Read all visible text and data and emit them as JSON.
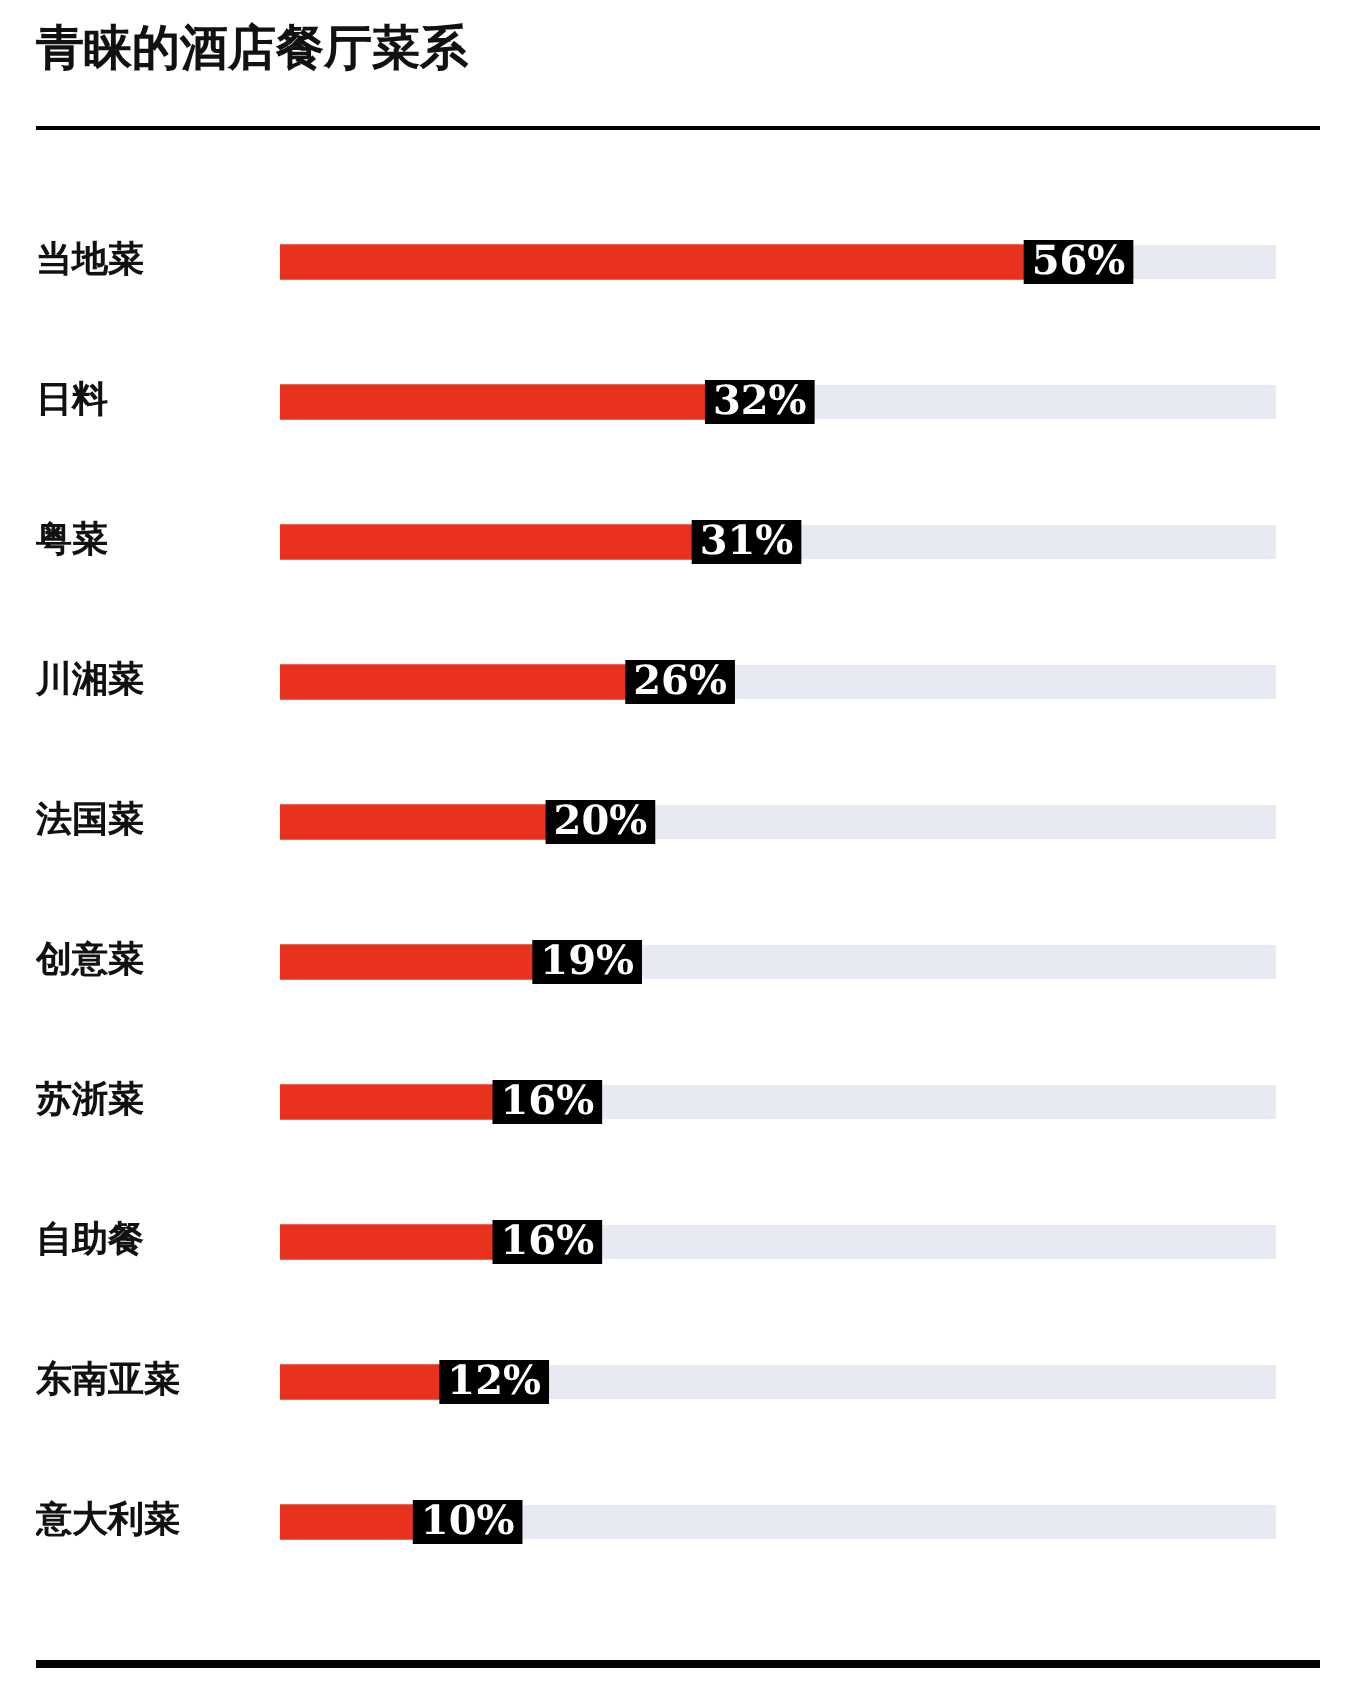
{
  "chart_data": {
    "type": "bar",
    "orientation": "horizontal",
    "title": "青睐的酒店餐厅菜系",
    "categories": [
      "当地菜",
      "日料",
      "粤菜",
      "川湘菜",
      "法国菜",
      "创意菜",
      "苏浙菜",
      "自助餐",
      "东南亚菜",
      "意大利菜"
    ],
    "values": [
      56,
      32,
      31,
      26,
      20,
      19,
      16,
      16,
      12,
      10
    ],
    "value_labels": [
      "56%",
      "32%",
      "31%",
      "26%",
      "20%",
      "19%",
      "16%",
      "16%",
      "12%",
      "10%"
    ],
    "color": "#e8321e",
    "xlim": [
      0,
      75
    ],
    "tick_labels": "y",
    "legend": false
  }
}
